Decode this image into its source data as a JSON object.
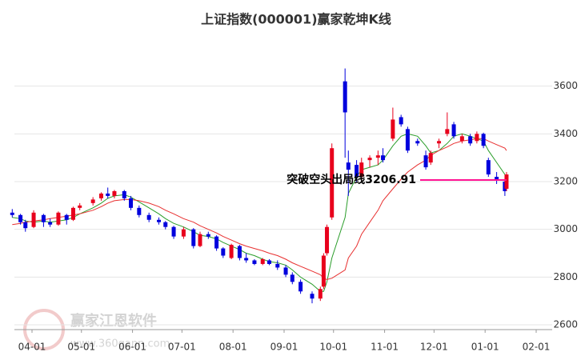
{
  "chart_data": {
    "type": "candlestick",
    "title": "上证指数(000001)赢家乾坤K线",
    "x": [
      "03-20",
      "03-25",
      "03-28",
      "04-02",
      "04-08",
      "04-12",
      "04-17",
      "04-22",
      "04-26",
      "04-30",
      "05-08",
      "05-13",
      "05-17",
      "05-21",
      "05-27",
      "05-31",
      "06-05",
      "06-11",
      "06-17",
      "06-21",
      "06-26",
      "07-02",
      "07-08",
      "07-12",
      "07-17",
      "07-22",
      "07-26",
      "07-31",
      "08-05",
      "08-09",
      "08-14",
      "08-19",
      "08-23",
      "08-28",
      "09-02",
      "09-06",
      "09-11",
      "09-18",
      "09-23",
      "09-25",
      "09-27",
      "09-30",
      "10-08",
      "10-10",
      "10-15",
      "10-18",
      "10-23",
      "10-28",
      "10-31",
      "11-06",
      "11-11",
      "11-15",
      "11-21",
      "11-26",
      "11-29",
      "12-04",
      "12-09",
      "12-13",
      "12-18",
      "12-23",
      "12-27",
      "12-31",
      "01-03",
      "01-08",
      "01-13",
      "01-14"
    ],
    "open": [
      3070,
      3060,
      3030,
      3010,
      3060,
      3030,
      3020,
      3060,
      3040,
      3090,
      3110,
      3130,
      3150,
      3140,
      3160,
      3130,
      3090,
      3060,
      3040,
      3030,
      3010,
      2970,
      3000,
      2930,
      2980,
      2970,
      2920,
      2880,
      2930,
      2880,
      2870,
      2855,
      2870,
      2855,
      2840,
      2810,
      2780,
      2730,
      2710,
      2760,
      2900,
      3050,
      3620,
      3280,
      3270,
      3220,
      3290,
      3300,
      3310,
      3380,
      3470,
      3420,
      3370,
      3310,
      3280,
      3360,
      3400,
      3440,
      3370,
      3390,
      3370,
      3400,
      3290,
      3220,
      3200,
      3170
    ],
    "high": [
      3085,
      3065,
      3040,
      3080,
      3065,
      3045,
      3075,
      3065,
      3095,
      3110,
      3135,
      3155,
      3175,
      3165,
      3165,
      3140,
      3100,
      3070,
      3050,
      3035,
      3015,
      3010,
      3005,
      2990,
      2990,
      2975,
      2925,
      2940,
      2935,
      2900,
      2875,
      2880,
      2875,
      2870,
      2850,
      2820,
      2790,
      2740,
      2760,
      2900,
      3020,
      3360,
      3674,
      3330,
      3290,
      3300,
      3310,
      3330,
      3340,
      3510,
      3480,
      3430,
      3380,
      3330,
      3330,
      3380,
      3490,
      3450,
      3400,
      3400,
      3410,
      3405,
      3300,
      3240,
      3210,
      3240
    ],
    "low": [
      3050,
      3020,
      2990,
      3005,
      3010,
      3010,
      3015,
      3020,
      3035,
      3080,
      3100,
      3120,
      3130,
      3130,
      3120,
      3080,
      3050,
      3030,
      3020,
      3000,
      2960,
      2960,
      2920,
      2925,
      2960,
      2910,
      2880,
      2875,
      2870,
      2860,
      2850,
      2850,
      2850,
      2830,
      2800,
      2770,
      2730,
      2690,
      2700,
      2750,
      2890,
      3040,
      3300,
      3140,
      3200,
      3200,
      3260,
      3270,
      3280,
      3370,
      3430,
      3320,
      3350,
      3250,
      3270,
      3340,
      3390,
      3380,
      3360,
      3350,
      3360,
      3340,
      3220,
      3190,
      3140,
      3160
    ],
    "close": [
      3060,
      3030,
      3005,
      3070,
      3030,
      3020,
      3070,
      3040,
      3090,
      3100,
      3125,
      3150,
      3140,
      3160,
      3130,
      3090,
      3060,
      3040,
      3030,
      3010,
      2970,
      3000,
      2930,
      2980,
      2970,
      2920,
      2890,
      2935,
      2880,
      2870,
      2855,
      2875,
      2855,
      2840,
      2810,
      2780,
      2740,
      2710,
      2750,
      2890,
      3010,
      3340,
      3490,
      3250,
      3220,
      3280,
      3300,
      3310,
      3290,
      3460,
      3440,
      3330,
      3360,
      3260,
      3320,
      3370,
      3420,
      3390,
      3390,
      3360,
      3400,
      3350,
      3230,
      3210,
      3160,
      3230
    ],
    "up_color": "#e8001c",
    "down_color": "#0000dd",
    "lines": [
      {
        "color": "#2a9d2a",
        "values": [
          3050,
          3045,
          3035,
          3030,
          3035,
          3030,
          3035,
          3040,
          3050,
          3065,
          3090,
          3110,
          3130,
          3140,
          3145,
          3135,
          3115,
          3090,
          3065,
          3045,
          3025,
          3010,
          2990,
          2975,
          2970,
          2960,
          2945,
          2930,
          2915,
          2900,
          2890,
          2875,
          2865,
          2860,
          2850,
          2830,
          2800,
          2770,
          2740,
          2740,
          2780,
          2880,
          3050,
          3150,
          3220,
          3250,
          3260,
          3270,
          3290,
          3350,
          3390,
          3400,
          3390,
          3350,
          3320,
          3330,
          3360,
          3390,
          3400,
          3390,
          3380,
          3370,
          3330,
          3280,
          3230,
          3200
        ]
      },
      {
        "color": "#e83030",
        "values": [
          3020,
          3025,
          3030,
          3035,
          3040,
          3045,
          3050,
          3055,
          3060,
          3065,
          3080,
          3095,
          3110,
          3120,
          3125,
          3125,
          3120,
          3110,
          3095,
          3080,
          3065,
          3045,
          3030,
          3015,
          3000,
          2985,
          2970,
          2955,
          2940,
          2930,
          2920,
          2910,
          2900,
          2890,
          2875,
          2860,
          2845,
          2825,
          2810,
          2795,
          2790,
          2795,
          2830,
          2880,
          2930,
          2980,
          3030,
          3080,
          3120,
          3170,
          3210,
          3240,
          3270,
          3290,
          3310,
          3330,
          3345,
          3360,
          3370,
          3375,
          3380,
          3380,
          3370,
          3355,
          3340,
          3330
        ]
      }
    ],
    "annotation": {
      "text": "突破空头出局线3206.91",
      "level": 3206.91,
      "color": "#ff1493"
    },
    "ylim": [
      2580,
      3810
    ],
    "yticks": [
      2600,
      2800,
      3000,
      3200,
      3400,
      3600
    ],
    "xticks": [
      "04-01",
      "05-01",
      "06-01",
      "07-01",
      "08-01",
      "09-01",
      "10-01",
      "11-01",
      "12-01",
      "01-01",
      "02-01"
    ],
    "grid": true,
    "watermark": {
      "name": "赢家江恩软件",
      "url": "www.360gann.com"
    }
  }
}
